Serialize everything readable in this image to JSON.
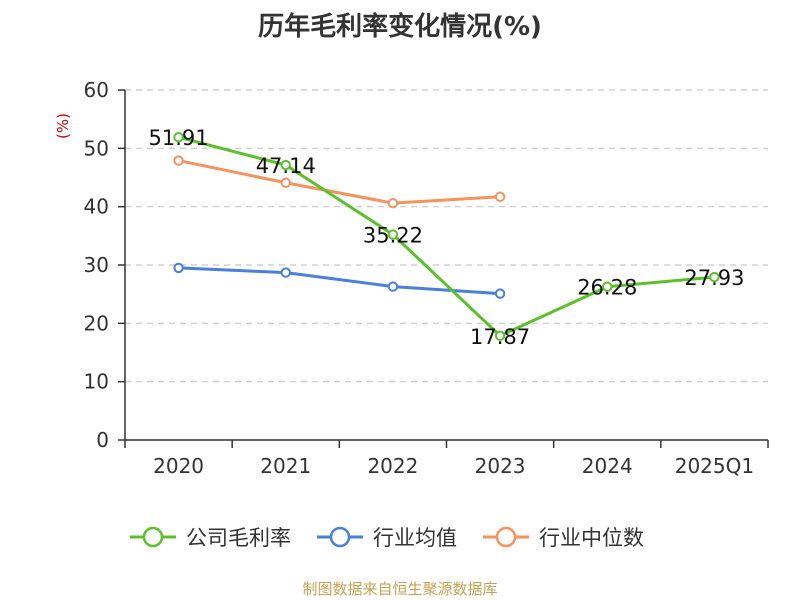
{
  "title": "历年毛利率变化情况(%)",
  "source": "制图数据来自恒生聚源数据库",
  "chart_data": {
    "type": "line",
    "title": "历年毛利率变化情况(%)",
    "ylabel": "(%)",
    "xlabel": "",
    "categories": [
      "2020",
      "2021",
      "2022",
      "2023",
      "2024",
      "2025Q1"
    ],
    "ylim": [
      0,
      60
    ],
    "yticks": [
      0,
      10,
      20,
      30,
      40,
      50,
      60
    ],
    "grid": true,
    "legend_position": "bottom",
    "series": [
      {
        "name": "公司毛利率",
        "color": "#5bc02b",
        "show_labels": true,
        "values": [
          51.91,
          47.14,
          35.22,
          17.87,
          26.28,
          27.93
        ],
        "labels": [
          "51.91",
          "47.14",
          "35.22",
          "17.87",
          "26.28",
          "27.93"
        ]
      },
      {
        "name": "行业均值",
        "color": "#4a7fdb",
        "show_labels": false,
        "values": [
          29.5,
          28.7,
          26.3,
          25.1,
          null,
          null
        ]
      },
      {
        "name": "行业中位数",
        "color": "#f5925e",
        "show_labels": false,
        "values": [
          47.9,
          44.1,
          40.6,
          41.7,
          null,
          null
        ]
      }
    ]
  }
}
